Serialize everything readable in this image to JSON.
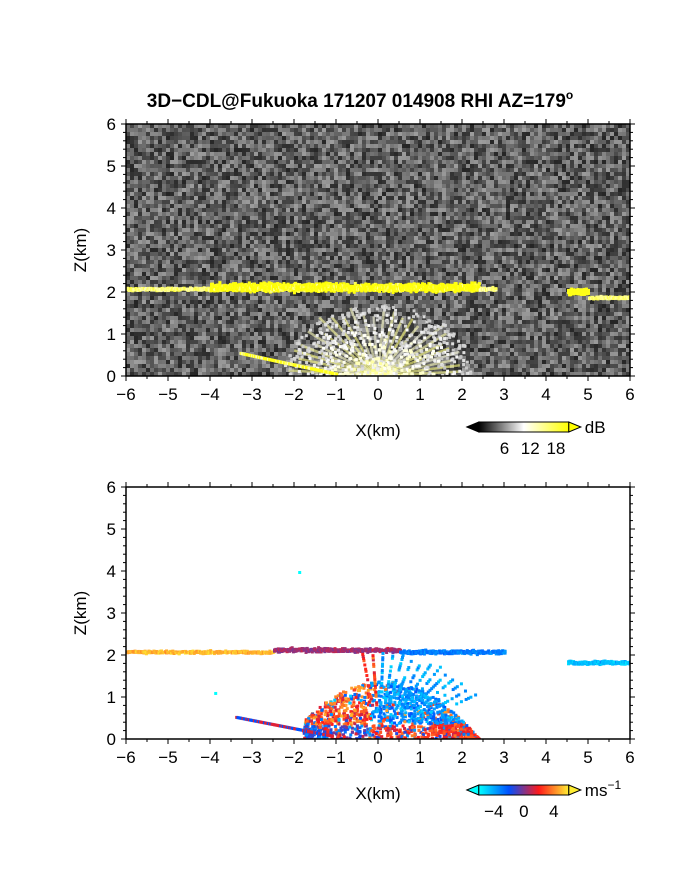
{
  "title": {
    "main": "3D−CDL@Fukuoka 171207 014908 RHI AZ=179",
    "degree": "o"
  },
  "chart_data": [
    {
      "type": "heatmap",
      "panel": "reflectivity",
      "xlabel": "X(km)",
      "ylabel": "Z(km)",
      "xlim": [
        -6,
        6
      ],
      "ylim": [
        0,
        6
      ],
      "xticks": [
        "−6",
        "−5",
        "−4",
        "−3",
        "−2",
        "−1",
        "0",
        "1",
        "2",
        "3",
        "4",
        "5",
        "6"
      ],
      "yticks": [
        "0",
        "1",
        "2",
        "3",
        "4",
        "5",
        "6"
      ],
      "background_color": "#2a2a2a",
      "colorbar": {
        "unit": "dB",
        "ticks": [
          "6",
          "12",
          "18"
        ],
        "range": [
          0,
          21
        ],
        "colors": [
          "#000000",
          "#ffffff",
          "#ffff00"
        ]
      },
      "features": [
        {
          "name": "cloud layer",
          "x_range": [
            -6,
            2.8
          ],
          "z": 2.1,
          "strong_x_range": [
            -4,
            2.4
          ],
          "value_db": 20
        },
        {
          "name": "cloud patch",
          "x_range": [
            4.5,
            6
          ],
          "z": 1.95,
          "strong_x_range": [
            4.5,
            5.0
          ],
          "value_db": 20
        },
        {
          "name": "near-field clutter fan",
          "x_range": [
            -2.3,
            2.3
          ],
          "z_top": 1.9
        },
        {
          "name": "low streak",
          "x_range": [
            -3.3,
            -1.0
          ],
          "z_range": [
            0.05,
            0.55
          ],
          "value_db": 20
        }
      ]
    },
    {
      "type": "heatmap",
      "panel": "doppler velocity",
      "xlabel": "X(km)",
      "ylabel": "Z(km)",
      "xlim": [
        -6,
        6
      ],
      "ylim": [
        0,
        6
      ],
      "xticks": [
        "−6",
        "−5",
        "−4",
        "−3",
        "−2",
        "−1",
        "0",
        "1",
        "2",
        "3",
        "4",
        "5",
        "6"
      ],
      "yticks": [
        "0",
        "1",
        "2",
        "3",
        "4",
        "5",
        "6"
      ],
      "colorbar": {
        "unit": "ms",
        "unit_exp": "−1",
        "ticks": [
          "−4",
          "0",
          "4"
        ],
        "range": [
          -6,
          6
        ],
        "colors": [
          "#00ffff",
          "#0050ff",
          "#ff1a1a",
          "#ffee33"
        ]
      },
      "features": [
        {
          "name": "cloud layer west",
          "x_range": [
            -6,
            -2.5
          ],
          "z": 2.1,
          "velocity": 5
        },
        {
          "name": "cloud layer middle",
          "x_range": [
            -2.5,
            0.5
          ],
          "z": 2.15,
          "velocity": 0.5
        },
        {
          "name": "cloud layer east",
          "x_range": [
            0.5,
            3.0
          ],
          "z": 2.1,
          "velocity": -3
        },
        {
          "name": "cloud patch",
          "x_range": [
            4.5,
            6
          ],
          "z": 1.85,
          "velocity": -4.5
        },
        {
          "name": "boundary layer",
          "x_range": [
            -1.8,
            2.6
          ],
          "z_top": 1.4
        },
        {
          "name": "isolated echo",
          "x": -1.9,
          "z": 4.0,
          "velocity": -6
        },
        {
          "name": "isolated echo",
          "x": -3.9,
          "z": 1.12,
          "velocity": -6
        }
      ]
    }
  ]
}
